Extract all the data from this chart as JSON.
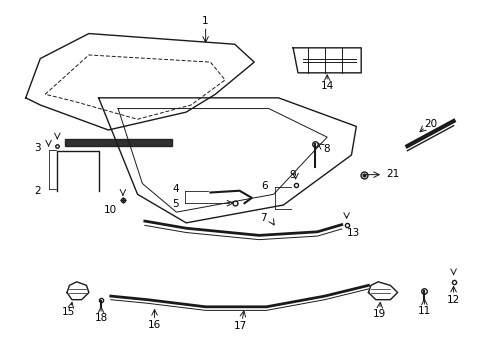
{
  "bg_color": "#ffffff",
  "fig_width": 4.89,
  "fig_height": 3.6,
  "dpi": 100,
  "line_color": "#1a1a1a",
  "label_fontsize": 7.5,
  "label_color": "#000000"
}
